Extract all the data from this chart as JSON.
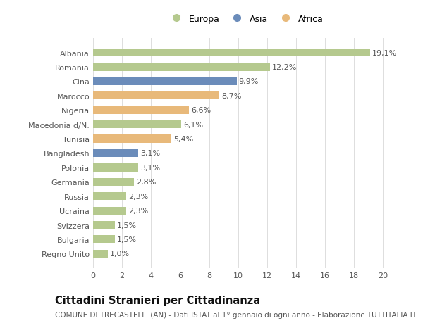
{
  "categories": [
    "Albania",
    "Romania",
    "Cina",
    "Marocco",
    "Nigeria",
    "Macedonia d/N.",
    "Tunisia",
    "Bangladesh",
    "Polonia",
    "Germania",
    "Russia",
    "Ucraina",
    "Svizzera",
    "Bulgaria",
    "Regno Unito"
  ],
  "values": [
    19.1,
    12.2,
    9.9,
    8.7,
    6.6,
    6.1,
    5.4,
    3.1,
    3.1,
    2.8,
    2.3,
    2.3,
    1.5,
    1.5,
    1.0
  ],
  "labels": [
    "19,1%",
    "12,2%",
    "9,9%",
    "8,7%",
    "6,6%",
    "6,1%",
    "5,4%",
    "3,1%",
    "3,1%",
    "2,8%",
    "2,3%",
    "2,3%",
    "1,5%",
    "1,5%",
    "1,0%"
  ],
  "colors": [
    "#b5c98e",
    "#b5c98e",
    "#6b8cba",
    "#e8b97a",
    "#e8b97a",
    "#b5c98e",
    "#e8b97a",
    "#6b8cba",
    "#b5c98e",
    "#b5c98e",
    "#b5c98e",
    "#b5c98e",
    "#b5c98e",
    "#b5c98e",
    "#b5c98e"
  ],
  "legend_labels": [
    "Europa",
    "Asia",
    "Africa"
  ],
  "legend_colors": [
    "#b5c98e",
    "#6b8cba",
    "#e8b97a"
  ],
  "xlim": [
    0,
    21
  ],
  "xticks": [
    0,
    2,
    4,
    6,
    8,
    10,
    12,
    14,
    16,
    18,
    20
  ],
  "title": "Cittadini Stranieri per Cittadinanza",
  "subtitle": "COMUNE DI TRECASTELLI (AN) - Dati ISTAT al 1° gennaio di ogni anno - Elaborazione TUTTITALIA.IT",
  "bg_color": "#ffffff",
  "bar_height": 0.55,
  "label_fontsize": 8.0,
  "tick_fontsize": 8.0,
  "title_fontsize": 10.5,
  "subtitle_fontsize": 7.5
}
